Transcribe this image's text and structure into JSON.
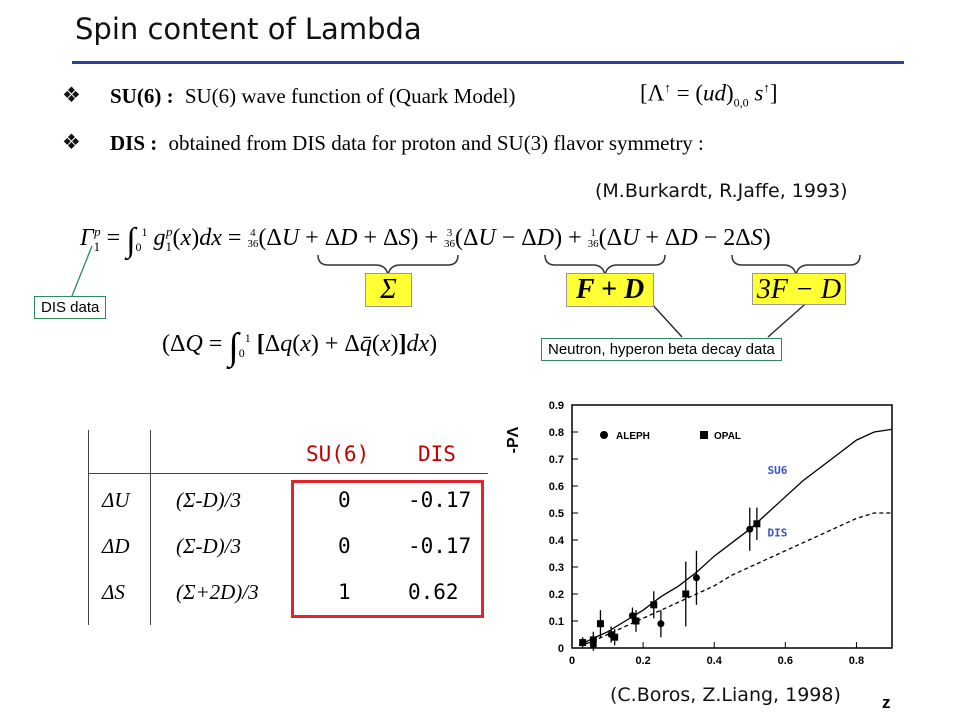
{
  "title": "Spin content of Lambda",
  "bullets": [
    {
      "label": "SU(6) :",
      "text": "SU(6) wave function of (Quark Model)",
      "formula": "[Λ↑ = (ud)0,0 s↑]"
    },
    {
      "label": "DIS :",
      "text": "obtained from DIS data for proton and SU(3) flavor symmetry :"
    }
  ],
  "citation_top": "(M.Burkardt, R.Jaffe, 1993)",
  "equation": {
    "gamma": "Γ1p = ∫01 g1p(x)dx = 4/36(ΔU + ΔD + ΔS) + 3/36(ΔU − ΔD) + 1/36(ΔU + ΔD − 2ΔS)",
    "sigma": "Σ",
    "fd": "F + D",
    "f3d": "3F − D",
    "dq": "(ΔQ = ∫01 [Δq(x) + Δq̄(x)]dx)"
  },
  "labels": {
    "dis_data": "DIS data",
    "beta_decay": "Neutron, hyperon beta decay data"
  },
  "table": {
    "headers": [
      "",
      "",
      "SU(6)",
      "DIS"
    ],
    "rows": [
      {
        "quark": "ΔU",
        "formula": "(Σ-D)/3",
        "su6": "0",
        "dis": "-0.17"
      },
      {
        "quark": "ΔD",
        "formula": "(Σ-D)/3",
        "su6": "0",
        "dis": "-0.17"
      },
      {
        "quark": "ΔS",
        "formula": "(Σ+2D)/3",
        "su6": "1",
        "dis": "0.62"
      }
    ]
  },
  "chart_data": {
    "type": "scatter",
    "ylabel": "-PΛ",
    "xlabel": "z",
    "xlim": [
      0,
      0.9
    ],
    "ylim": [
      0,
      0.9
    ],
    "xticks": [
      "0",
      "0.2",
      "0.4",
      "0.6",
      "0.8"
    ],
    "yticks": [
      "0",
      "0.1",
      "0.2",
      "0.3",
      "0.4",
      "0.5",
      "0.6",
      "0.7",
      "0.8",
      "0.9"
    ],
    "legend": [
      "ALEPH",
      "OPAL"
    ],
    "curve_labels": [
      "SU6",
      "DIS"
    ],
    "series": [
      {
        "name": "ALEPH",
        "marker": "circle",
        "x": [
          0.06,
          0.11,
          0.17,
          0.25,
          0.35,
          0.5
        ],
        "y": [
          0.01,
          0.05,
          0.12,
          0.09,
          0.26,
          0.44
        ],
        "err": [
          0.02,
          0.03,
          0.03,
          0.05,
          0.1,
          0.08
        ]
      },
      {
        "name": "OPAL",
        "marker": "square",
        "x": [
          0.03,
          0.06,
          0.08,
          0.12,
          0.18,
          0.23,
          0.32,
          0.52
        ],
        "y": [
          0.02,
          0.03,
          0.09,
          0.04,
          0.1,
          0.16,
          0.2,
          0.46
        ],
        "err": [
          0.02,
          0.03,
          0.05,
          0.03,
          0.04,
          0.05,
          0.12,
          0.06
        ]
      },
      {
        "name": "SU6",
        "line": "solid",
        "x": [
          0.02,
          0.05,
          0.1,
          0.15,
          0.2,
          0.25,
          0.3,
          0.35,
          0.4,
          0.45,
          0.5,
          0.55,
          0.6,
          0.65,
          0.7,
          0.75,
          0.8,
          0.85,
          0.9
        ],
        "y": [
          0.01,
          0.03,
          0.06,
          0.1,
          0.14,
          0.19,
          0.23,
          0.28,
          0.34,
          0.39,
          0.44,
          0.5,
          0.56,
          0.62,
          0.67,
          0.72,
          0.77,
          0.8,
          0.81
        ]
      },
      {
        "name": "DIS",
        "line": "dashed",
        "x": [
          0.02,
          0.05,
          0.1,
          0.15,
          0.2,
          0.25,
          0.3,
          0.35,
          0.4,
          0.45,
          0.5,
          0.55,
          0.6,
          0.65,
          0.7,
          0.75,
          0.8,
          0.85,
          0.9
        ],
        "y": [
          0.01,
          0.02,
          0.05,
          0.08,
          0.11,
          0.14,
          0.17,
          0.2,
          0.23,
          0.27,
          0.3,
          0.33,
          0.36,
          0.39,
          0.42,
          0.45,
          0.48,
          0.5,
          0.5
        ]
      }
    ]
  },
  "citation_bottom": "(C.Boros, Z.Liang, 1998)"
}
